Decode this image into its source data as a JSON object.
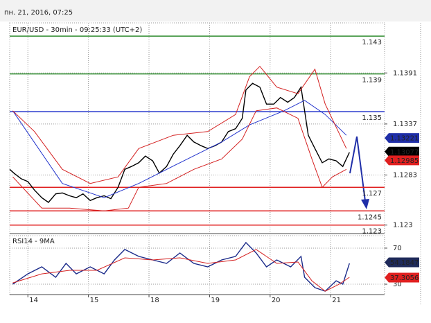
{
  "header": "пн. 21, 2016, 07:25",
  "chart_data": [
    {
      "type": "line",
      "title": "EUR/USD - 30min - 09:25:33 (UTC+2)",
      "xlim": [
        -0.3,
        5.89
      ],
      "ylim": [
        1.1221,
        1.1444
      ],
      "yticks": [
        1.123,
        1.1283,
        1.1337,
        1.1391
      ],
      "grid": true,
      "series": [
        {
          "name": "EUR/USD",
          "color": "#000000",
          "x": [
            -0.3,
            -0.23,
            -0.11,
            0,
            0.11,
            0.23,
            0.34,
            0.46,
            0.57,
            0.69,
            0.8,
            0.91,
            1.03,
            1.14,
            1.26,
            1.37,
            1.49,
            1.6,
            1.71,
            1.83,
            1.94,
            2.06,
            2.17,
            2.29,
            2.4,
            2.51,
            2.63,
            2.74,
            2.86,
            2.97,
            3.09,
            3.2,
            3.31,
            3.43,
            3.54,
            3.6,
            3.71,
            3.83,
            3.94,
            4.06,
            4.17,
            4.29,
            4.4,
            4.51,
            4.57,
            4.63,
            4.74,
            4.86,
            4.97,
            5.09,
            5.2,
            5.31
          ],
          "values": [
            1.1289,
            1.1285,
            1.1279,
            1.1276,
            1.1267,
            1.1259,
            1.1254,
            1.1263,
            1.1264,
            1.1261,
            1.1259,
            1.1263,
            1.1256,
            1.1259,
            1.1261,
            1.1258,
            1.127,
            1.1289,
            1.1292,
            1.1296,
            1.1303,
            1.1298,
            1.1285,
            1.1292,
            1.1305,
            1.1314,
            1.1325,
            1.1318,
            1.1314,
            1.1311,
            1.1314,
            1.1318,
            1.1329,
            1.1332,
            1.1343,
            1.1373,
            1.138,
            1.1376,
            1.1358,
            1.1358,
            1.1365,
            1.136,
            1.1365,
            1.1376,
            1.1351,
            1.1325,
            1.1311,
            1.1296,
            1.13,
            1.1298,
            1.1292,
            1.1307
          ]
        },
        {
          "name": "MA",
          "color": "#2233cc",
          "x": [
            -0.25,
            0.57,
            1.26,
            1.83,
            2.51,
            3.2,
            3.66,
            4.23,
            4.57,
            4.91,
            5.26
          ],
          "values": [
            1.1351,
            1.1274,
            1.1259,
            1.1274,
            1.1296,
            1.1318,
            1.1336,
            1.1351,
            1.1362,
            1.1347,
            1.1325
          ]
        },
        {
          "name": "BB upper",
          "color": "#d42020",
          "x": [
            -0.25,
            0.11,
            0.57,
            1.03,
            1.49,
            1.83,
            2.4,
            2.97,
            3.43,
            3.66,
            3.83,
            4.11,
            4.46,
            4.74,
            4.91,
            5.26
          ],
          "values": [
            1.1351,
            1.1329,
            1.1289,
            1.1274,
            1.1281,
            1.1311,
            1.1325,
            1.1329,
            1.1347,
            1.1387,
            1.1398,
            1.1376,
            1.1369,
            1.1395,
            1.1358,
            1.1311
          ]
        },
        {
          "name": "BB lower",
          "color": "#d42020",
          "x": [
            -0.25,
            0.23,
            0.69,
            1.26,
            1.66,
            1.83,
            2.29,
            2.74,
            3.2,
            3.54,
            3.77,
            4.11,
            4.46,
            4.69,
            4.86,
            5.03,
            5.26
          ],
          "values": [
            1.1281,
            1.1248,
            1.1248,
            1.1245,
            1.1248,
            1.127,
            1.1274,
            1.1289,
            1.13,
            1.1321,
            1.1351,
            1.1354,
            1.1343,
            1.13,
            1.127,
            1.1281,
            1.1289
          ]
        }
      ],
      "levels": [
        {
          "value": 1.143,
          "color": "#2e8b2e"
        },
        {
          "value": 1.139,
          "color": "#2e8b2e"
        },
        {
          "value": 1.135,
          "color": "#2233cc"
        },
        {
          "value": 1.127,
          "color": "#e02020"
        },
        {
          "value": 1.1245,
          "color": "#e02020"
        },
        {
          "value": 1.123,
          "color": "#e02020"
        }
      ],
      "tags": [
        {
          "value": 1.13221,
          "color": "#1f2ea8"
        },
        {
          "value": 1.13077,
          "color": "#000000"
        },
        {
          "value": 1.12985,
          "color": "#e02020"
        }
      ]
    },
    {
      "type": "line",
      "title": "RSI14 - 9MA",
      "xlim": [
        -0.3,
        5.89
      ],
      "ylim": [
        18.5,
        83.8
      ],
      "xticks": [
        {
          "value": 0,
          "label": "14"
        },
        {
          "value": 1,
          "label": "15"
        },
        {
          "value": 2,
          "label": "18"
        },
        {
          "value": 3,
          "label": "19"
        },
        {
          "value": 4,
          "label": "20"
        },
        {
          "value": 5,
          "label": "21"
        }
      ],
      "yticks": [
        30,
        70
      ],
      "grid": true,
      "series": [
        {
          "name": "RSI14",
          "color": "#1a2a8a",
          "x": [
            -0.25,
            0,
            0.23,
            0.46,
            0.63,
            0.8,
            1.03,
            1.26,
            1.43,
            1.6,
            1.83,
            2.06,
            2.29,
            2.51,
            2.74,
            2.97,
            3.2,
            3.43,
            3.6,
            3.77,
            3.94,
            4.11,
            4.34,
            4.51,
            4.57,
            4.74,
            4.91,
            5.09,
            5.2,
            5.31
          ],
          "values": [
            30,
            41.5,
            49.2,
            37.7,
            53.1,
            41.5,
            49.2,
            41.5,
            56.9,
            68.5,
            60.8,
            56.9,
            53.1,
            64.6,
            53.1,
            49.2,
            56.9,
            60.8,
            76.2,
            64.6,
            49.2,
            56.9,
            49.2,
            60.8,
            37.7,
            26.2,
            22.3,
            33.8,
            30,
            53.1
          ]
        },
        {
          "name": "9MA",
          "color": "#d42020",
          "x": [
            -0.25,
            0.23,
            0.69,
            1.14,
            1.6,
            2.06,
            2.51,
            2.97,
            3.43,
            3.77,
            4.11,
            4.46,
            4.69,
            4.91,
            5.14,
            5.31
          ],
          "values": [
            31.5,
            41.5,
            45.4,
            45.4,
            59.2,
            56.9,
            59.2,
            53.1,
            56.9,
            68.5,
            53.1,
            54.6,
            33.8,
            22.3,
            30,
            37.7
          ]
        }
      ],
      "tags": [
        {
          "value": 54.1847,
          "color": "#1f2a5a"
        },
        {
          "value": 37.3056,
          "color": "#e02020"
        }
      ]
    }
  ]
}
